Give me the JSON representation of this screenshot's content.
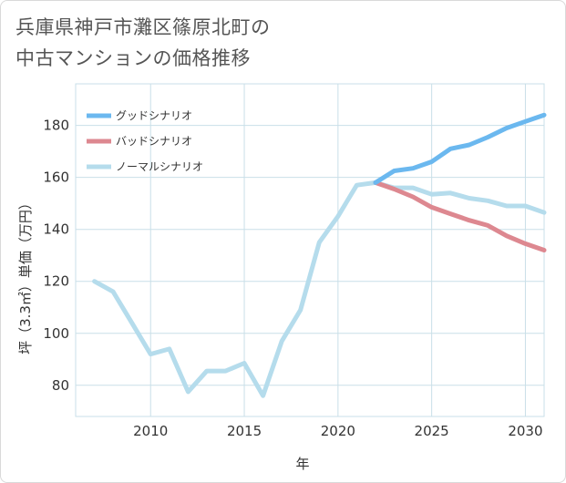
{
  "title_lines": [
    "兵庫県神戸市灘区篠原北町の",
    "中古マンションの価格推移"
  ],
  "colors": {
    "good": "#6bb8ef",
    "bad": "#dd8890",
    "normal": "#b5dcec",
    "grid": "#c9dfe8",
    "text": "#333333",
    "title": "#555555"
  },
  "chart_data": {
    "type": "line",
    "title": "兵庫県神戸市灘区篠原北町の中古マンションの価格推移",
    "xlabel": "年",
    "ylabel": "坪（3.3㎡）単価（万円）",
    "xlim": [
      2006,
      2031
    ],
    "ylim": [
      68,
      196
    ],
    "x_ticks": [
      2010,
      2015,
      2020,
      2025,
      2030
    ],
    "y_ticks": [
      80,
      100,
      120,
      140,
      160,
      180
    ],
    "grid": true,
    "legend_position": "top-left",
    "series": [
      {
        "name": "グッドシナリオ",
        "color": "#6bb8ef",
        "x": [
          2022,
          2023,
          2024,
          2025,
          2026,
          2027,
          2028,
          2029,
          2030,
          2031
        ],
        "y": [
          158,
          162.5,
          163.5,
          166,
          171,
          172.5,
          175.5,
          179,
          181.5,
          184
        ]
      },
      {
        "name": "バッドシナリオ",
        "color": "#dd8890",
        "x": [
          2022,
          2023,
          2024,
          2025,
          2026,
          2027,
          2028,
          2029,
          2030,
          2031
        ],
        "y": [
          158,
          155.5,
          152.5,
          148.5,
          146,
          143.5,
          141.5,
          137.5,
          134.5,
          132
        ]
      },
      {
        "name": "ノーマルシナリオ",
        "color": "#b5dcec",
        "x": [
          2007,
          2008,
          2009,
          2010,
          2011,
          2012,
          2013,
          2014,
          2015,
          2016,
          2017,
          2018,
          2019,
          2020,
          2021,
          2022,
          2023,
          2024,
          2025,
          2026,
          2027,
          2028,
          2029,
          2030,
          2031
        ],
        "y": [
          120,
          116,
          104,
          92,
          94,
          77.5,
          85.5,
          85.5,
          88.5,
          76,
          97,
          109,
          135,
          145,
          157,
          158,
          156,
          156,
          153.5,
          154,
          152,
          151,
          149,
          149,
          146.5
        ]
      }
    ]
  }
}
